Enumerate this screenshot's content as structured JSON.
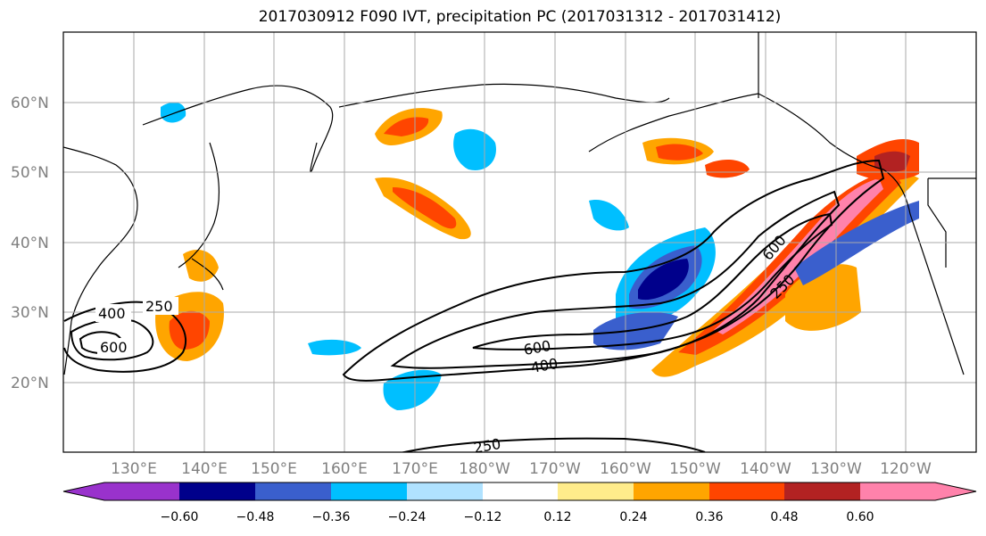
{
  "title": "2017030912 F090 IVT, precipitation PC (2017031312 - 2017031412)",
  "lat_labels": [
    "60°N",
    "50°N",
    "40°N",
    "30°N",
    "20°N"
  ],
  "lon_labels": [
    "130°E",
    "140°E",
    "150°E",
    "160°E",
    "170°E",
    "180°W",
    "170°W",
    "160°W",
    "150°W",
    "140°W",
    "130°W",
    "120°W"
  ],
  "contour_labels": [
    "400",
    "250",
    "600",
    "600",
    "400",
    "600",
    "250",
    "250"
  ],
  "colorbar": {
    "ticks": [
      "−0.60",
      "−0.48",
      "−0.36",
      "−0.24",
      "−0.12",
      "0.12",
      "0.24",
      "0.36",
      "0.48",
      "0.60"
    ],
    "colors": [
      "#9932cc",
      "#00008b",
      "#3a5fcd",
      "#00bfff",
      "#b0e2ff",
      "#ffffff",
      "#ffec8b",
      "#ffa500",
      "#ff4500",
      "#b22222",
      "#ff82ab"
    ]
  },
  "chart_data": {
    "type": "map",
    "title": "2017030912 F090 IVT, precipitation PC (2017031312 - 2017031412)",
    "lat_range": [
      10,
      70
    ],
    "lon_range": [
      120,
      250
    ],
    "contour_levels_ivt": [
      250,
      400,
      600
    ],
    "shading_levels": [
      -0.6,
      -0.48,
      -0.36,
      -0.24,
      -0.12,
      0.12,
      0.24,
      0.36,
      0.48,
      0.6
    ]
  }
}
